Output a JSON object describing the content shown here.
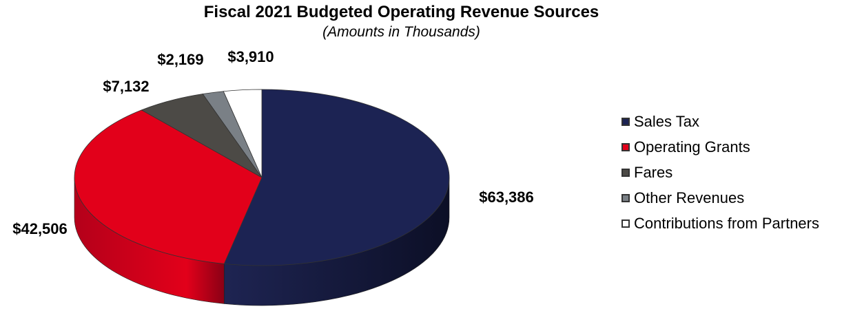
{
  "chart_data": {
    "type": "pie",
    "title": "Fiscal 2021 Budgeted Operating Revenue Sources",
    "subtitle": "(Amounts in Thousands)",
    "legend_position": "right",
    "slices": [
      {
        "name": "Sales Tax",
        "value": 63386,
        "label": "$63,386",
        "color": "#1c2353"
      },
      {
        "name": "Operating Grants",
        "value": 42506,
        "label": "$42,506",
        "color": "#e2001a"
      },
      {
        "name": "Fares",
        "value": 7132,
        "label": "$7,132",
        "color": "#4c4a46"
      },
      {
        "name": "Other Revenues",
        "value": 2169,
        "label": "$2,169",
        "color": "#7a8086"
      },
      {
        "name": "Contributions from Partners",
        "value": 3910,
        "label": "$3,910",
        "color": "#ffffff"
      }
    ]
  }
}
